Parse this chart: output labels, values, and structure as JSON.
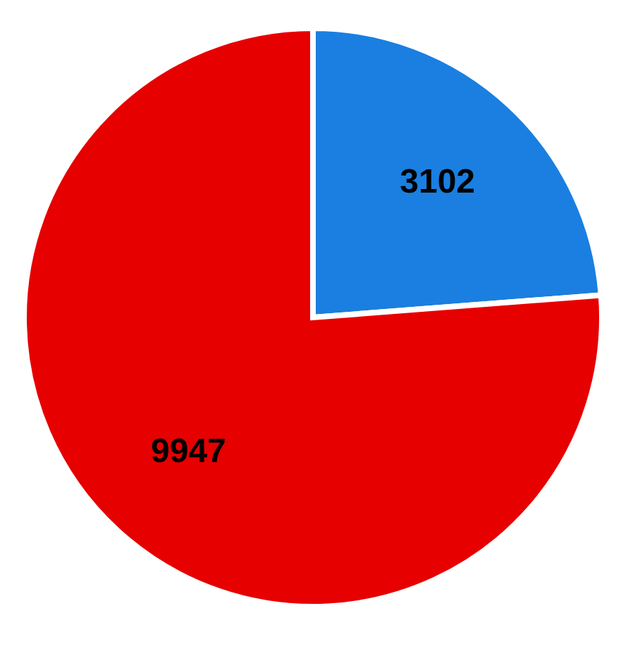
{
  "chart_data": {
    "type": "pie",
    "categories": [
      null,
      null
    ],
    "values": [
      3102,
      9947
    ],
    "colors": [
      "#1a7fe0",
      "#e60000"
    ],
    "data_labels": true,
    "legend": false
  }
}
